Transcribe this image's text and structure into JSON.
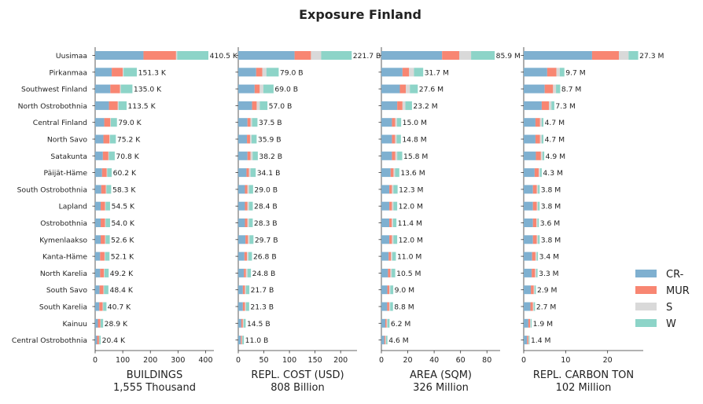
{
  "title": "Exposure Finland",
  "colors": {
    "CR-": "#7fb0d0",
    "MUR": "#f88672",
    "S": "#d9d9d9",
    "W": "#8dd4c8"
  },
  "regions": [
    "Uusimaa",
    "Pirkanmaa",
    "Southwest Finland",
    "North Ostrobothnia",
    "Central Finland",
    "North Savo",
    "Satakunta",
    "Päijät-Häme",
    "South Ostrobothnia",
    "Lapland",
    "Ostrobothnia",
    "Kymenlaakso",
    "Kanta-Häme",
    "North Karelia",
    "South Savo",
    "South Karelia",
    "Kainuu",
    "Central Ostrobothnia"
  ],
  "legend": [
    {
      "key": "CR-",
      "label": "CR-"
    },
    {
      "key": "MUR",
      "label": "MUR"
    },
    {
      "key": "S",
      "label": "S"
    },
    {
      "key": "W",
      "label": "W"
    }
  ],
  "chart_data": [
    {
      "type": "bar",
      "orientation": "horizontal",
      "stacked": true,
      "xlabel": "BUILDINGS",
      "subtitle": "1,555 Thousand",
      "xlim": [
        0,
        430
      ],
      "ticks": [
        0,
        100,
        200,
        300,
        400
      ],
      "series": [
        {
          "name": "CR-",
          "values": [
            175,
            60,
            55,
            50,
            33,
            30,
            28,
            25,
            22,
            20,
            20,
            20,
            18,
            18,
            16,
            15,
            10,
            7
          ]
        },
        {
          "name": "MUR",
          "values": [
            118,
            40,
            35,
            32,
            22,
            22,
            20,
            17,
            17,
            16,
            16,
            16,
            16,
            14,
            14,
            12,
            9,
            7
          ]
        },
        {
          "name": "S",
          "values": [
            4,
            3,
            3,
            3,
            2,
            2,
            2,
            2,
            2,
            2,
            2,
            2,
            2,
            2,
            2,
            2,
            1,
            1
          ]
        },
        {
          "name": "W",
          "values": [
            113,
            48,
            42,
            29,
            22,
            21,
            21,
            16,
            17,
            16,
            16,
            15,
            16,
            15,
            16,
            12,
            9,
            5
          ]
        }
      ],
      "totals": [
        410.5,
        151.3,
        135.0,
        113.5,
        79.0,
        75.2,
        70.8,
        60.2,
        58.3,
        54.5,
        54.0,
        52.6,
        52.1,
        49.2,
        48.4,
        40.7,
        28.9,
        20.4
      ],
      "labels": [
        "410.5 K",
        "151.3 K",
        "135.0 K",
        "113.5 K",
        "79.0 K",
        "75.2 K",
        "70.8 K",
        "60.2 K",
        "58.3 K",
        "54.5 K",
        "54.0 K",
        "52.6 K",
        "52.1 K",
        "49.2 K",
        "48.4 K",
        "40.7 K",
        "28.9 K",
        "20.4 K"
      ]
    },
    {
      "type": "bar",
      "orientation": "horizontal",
      "stacked": true,
      "xlabel": "REPL. COST (USD)",
      "subtitle": "808 Billion",
      "xlim": [
        0,
        232
      ],
      "ticks": [
        0,
        50,
        100,
        150,
        200
      ],
      "series": [
        {
          "name": "CR-",
          "values": [
            110,
            35,
            32,
            27,
            18,
            17,
            18,
            16,
            13,
            13,
            13,
            14,
            12,
            11,
            9,
            9,
            6,
            5
          ]
        },
        {
          "name": "MUR",
          "values": [
            32,
            12,
            10,
            9,
            6,
            6,
            6,
            5,
            5,
            5,
            5,
            5,
            5,
            4,
            4,
            4,
            3,
            2
          ]
        },
        {
          "name": "S",
          "values": [
            20,
            8,
            7,
            6,
            3,
            3,
            4,
            3,
            3,
            3,
            3,
            3,
            3,
            3,
            2,
            2,
            1.5,
            1
          ]
        },
        {
          "name": "W",
          "values": [
            59.7,
            24,
            20,
            15,
            10.5,
            9.9,
            10.2,
            10.1,
            8,
            7.4,
            7.3,
            7.7,
            6.8,
            6.8,
            6.7,
            6.3,
            4,
            3
          ]
        }
      ],
      "totals": [
        221.7,
        79.0,
        69.0,
        57.0,
        37.5,
        35.9,
        38.2,
        34.1,
        29.0,
        28.4,
        28.3,
        29.7,
        26.8,
        24.8,
        21.7,
        21.3,
        14.5,
        11.0
      ],
      "labels": [
        "221.7 B",
        "79.0 B",
        "69.0 B",
        "57.0 B",
        "37.5 B",
        "35.9 B",
        "38.2 B",
        "34.1 B",
        "29.0 B",
        "28.4 B",
        "28.3 B",
        "29.7 B",
        "26.8 B",
        "24.8 B",
        "21.7 B",
        "21.3 B",
        "14.5 B",
        "11.0 B"
      ]
    },
    {
      "type": "bar",
      "orientation": "horizontal",
      "stacked": true,
      "xlabel": "AREA (SQM)",
      "subtitle": "326 Million",
      "xlim": [
        0,
        90
      ],
      "ticks": [
        0,
        20,
        40,
        60,
        80
      ],
      "series": [
        {
          "name": "CR-",
          "values": [
            46,
            16,
            14,
            12,
            8,
            8,
            8,
            7,
            6,
            6,
            6,
            6,
            5.5,
            5,
            4.5,
            4.4,
            3,
            2.3
          ]
        },
        {
          "name": "MUR",
          "values": [
            13,
            5,
            4.5,
            4,
            2.5,
            2.4,
            2.6,
            2.2,
            2,
            2,
            1.9,
            2,
            1.8,
            1.8,
            1.5,
            1.5,
            1,
            0.8
          ]
        },
        {
          "name": "S",
          "values": [
            9,
            3.7,
            3.1,
            2.2,
            1.3,
            1.2,
            1.4,
            1.2,
            1.1,
            1.1,
            1,
            1.1,
            1,
            1,
            0.8,
            0.8,
            0.6,
            0.4
          ]
        },
        {
          "name": "W",
          "values": [
            17.9,
            7,
            6,
            5,
            3.2,
            3.2,
            3.8,
            3.2,
            3.2,
            2.9,
            2.5,
            2.9,
            2.7,
            2.7,
            2.2,
            2.1,
            1.6,
            1.1
          ]
        }
      ],
      "totals": [
        85.9,
        31.7,
        27.6,
        23.2,
        15.0,
        14.8,
        15.8,
        13.6,
        12.3,
        12.0,
        11.4,
        12.0,
        11.0,
        10.5,
        9.0,
        8.8,
        6.2,
        4.6
      ],
      "labels": [
        "85.9 M",
        "31.7 M",
        "27.6 M",
        "23.2 M",
        "15.0 M",
        "14.8 M",
        "15.8 M",
        "13.6 M",
        "12.3 M",
        "12.0 M",
        "11.4 M",
        "12.0 M",
        "11.0 M",
        "10.5 M",
        "9.0 M",
        "8.8 M",
        "6.2 M",
        "4.6 M"
      ]
    },
    {
      "type": "bar",
      "orientation": "horizontal",
      "stacked": true,
      "xlabel": "REPL. CARBON TON",
      "subtitle": "102 Million",
      "xlim": [
        0,
        28.5
      ],
      "ticks": [
        0,
        10,
        20
      ],
      "series": [
        {
          "name": "CR-",
          "values": [
            16.3,
            5.6,
            5,
            4.3,
            2.8,
            2.8,
            2.9,
            2.6,
            2.2,
            2.2,
            2.2,
            2.2,
            2,
            1.9,
            1.7,
            1.6,
            1.1,
            0.8
          ]
        },
        {
          "name": "MUR",
          "values": [
            6.4,
            2.2,
            2,
            1.7,
            1.1,
            1.1,
            1.2,
            1,
            0.9,
            0.9,
            0.8,
            0.9,
            0.8,
            0.8,
            0.7,
            0.6,
            0.4,
            0.3
          ]
        },
        {
          "name": "S",
          "values": [
            2.3,
            0.8,
            0.7,
            0.6,
            0.4,
            0.4,
            0.4,
            0.3,
            0.3,
            0.3,
            0.3,
            0.3,
            0.3,
            0.3,
            0.2,
            0.2,
            0.2,
            0.1
          ]
        },
        {
          "name": "W",
          "values": [
            2.3,
            1.1,
            1.0,
            0.7,
            0.4,
            0.4,
            0.4,
            0.4,
            0.4,
            0.4,
            0.3,
            0.4,
            0.3,
            0.3,
            0.3,
            0.3,
            0.2,
            0.2
          ]
        }
      ],
      "totals": [
        27.3,
        9.7,
        8.7,
        7.3,
        4.7,
        4.7,
        4.9,
        4.3,
        3.8,
        3.8,
        3.6,
        3.8,
        3.4,
        3.3,
        2.9,
        2.7,
        1.9,
        1.4
      ],
      "labels": [
        "27.3 M",
        "9.7 M",
        "8.7 M",
        "7.3 M",
        "4.7 M",
        "4.7 M",
        "4.9 M",
        "4.3 M",
        "3.8 M",
        "3.8 M",
        "3.6 M",
        "3.8 M",
        "3.4 M",
        "3.3 M",
        "2.9 M",
        "2.7 M",
        "1.9 M",
        "1.4 M"
      ]
    }
  ]
}
